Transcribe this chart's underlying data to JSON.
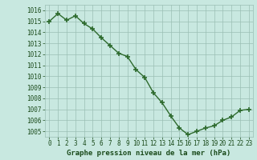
{
  "x": [
    0,
    1,
    2,
    3,
    4,
    5,
    6,
    7,
    8,
    9,
    10,
    11,
    12,
    13,
    14,
    15,
    16,
    17,
    18,
    19,
    20,
    21,
    22,
    23
  ],
  "y": [
    1015.0,
    1015.7,
    1015.1,
    1015.5,
    1014.8,
    1014.3,
    1013.5,
    1012.8,
    1012.1,
    1011.8,
    1010.6,
    1009.9,
    1008.5,
    1007.6,
    1006.4,
    1005.3,
    1004.7,
    1005.0,
    1005.3,
    1005.5,
    1006.0,
    1006.3,
    1006.9,
    1007.0
  ],
  "line_color": "#2d6a2d",
  "marker_color": "#2d6a2d",
  "bg_color": "#c8e8e0",
  "grid_color": "#9bbfb4",
  "title": "Graphe pression niveau de la mer (hPa)",
  "ylim_min": 1004.5,
  "ylim_max": 1016.5,
  "xlim_min": -0.5,
  "xlim_max": 23.5,
  "yticks": [
    1005,
    1006,
    1007,
    1008,
    1009,
    1010,
    1011,
    1012,
    1013,
    1014,
    1015,
    1016
  ],
  "xticks": [
    0,
    1,
    2,
    3,
    4,
    5,
    6,
    7,
    8,
    9,
    10,
    11,
    12,
    13,
    14,
    15,
    16,
    17,
    18,
    19,
    20,
    21,
    22,
    23
  ],
  "title_fontsize": 6.5,
  "tick_fontsize": 5.5,
  "title_color": "#1a4a1a",
  "tick_color": "#1a4a1a",
  "marker_size": 4,
  "line_width": 1.0
}
